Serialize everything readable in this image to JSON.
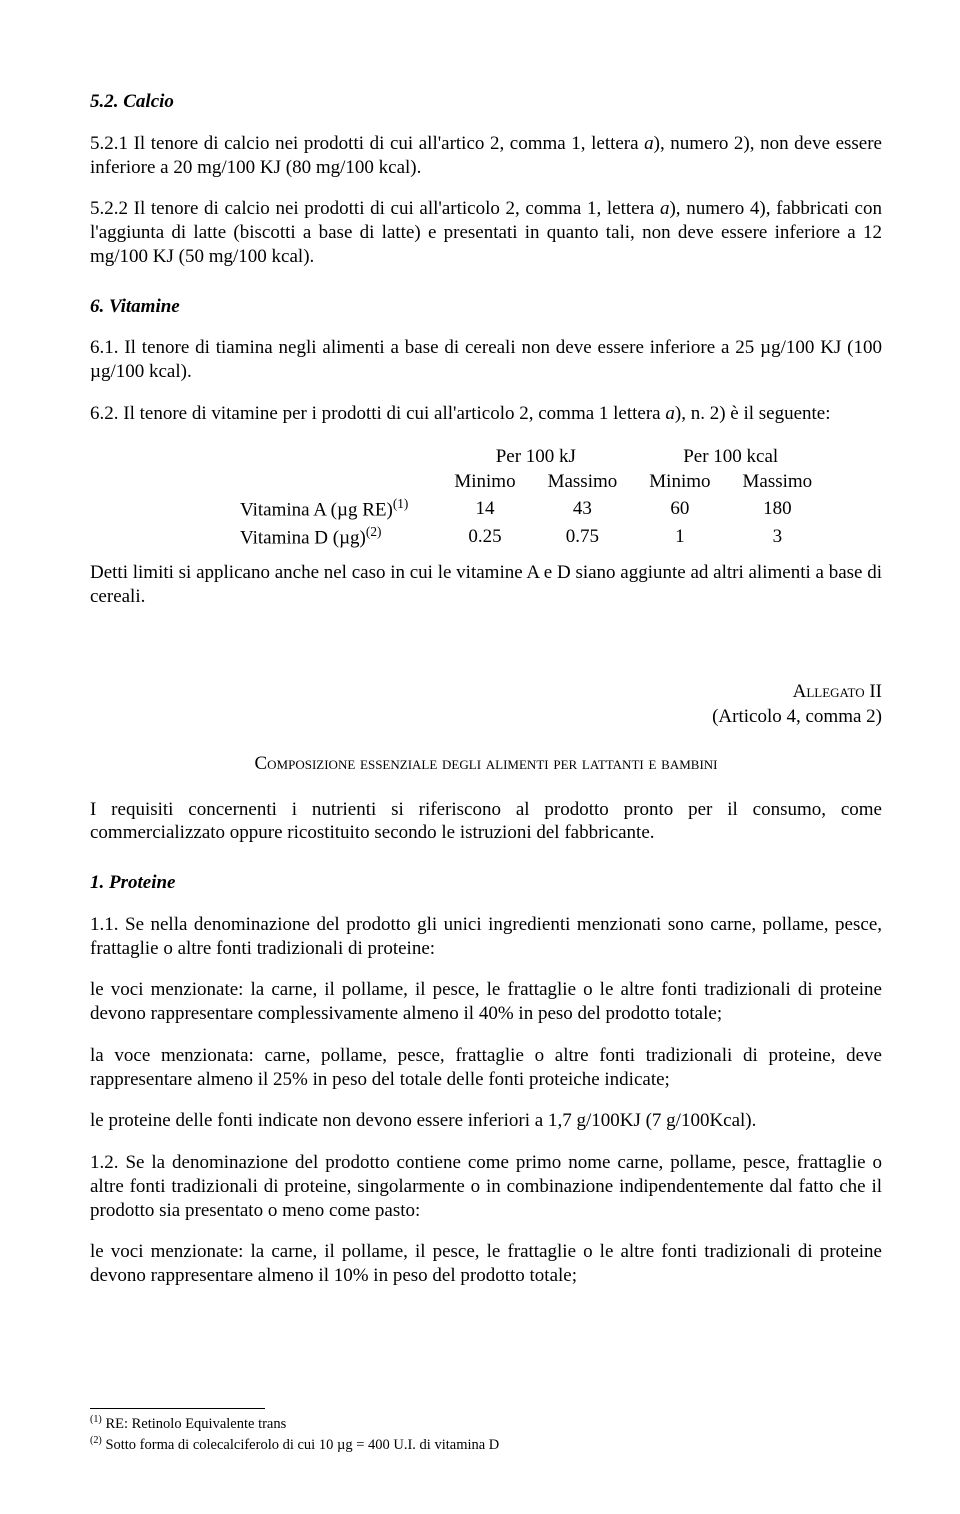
{
  "calcio": {
    "heading": "5.2. Calcio",
    "p521_pre": "5.2.1 Il tenore di calcio nei prodotti di cui all'artico 2, comma 1, lettera ",
    "p521_a": "a",
    "p521_post": "), numero 2), non deve essere inferiore a 20 mg/100 KJ (80 mg/100 kcal).",
    "p522_pre": "5.2.2 Il tenore di calcio nei prodotti di cui all'articolo 2, comma 1, lettera ",
    "p522_a": "a",
    "p522_post": "), numero 4), fabbricati con l'aggiunta di latte (biscotti a base di latte) e presentati in quanto tali, non deve essere inferiore a 12 mg/100 KJ (50 mg/100 kcal)."
  },
  "vitamine": {
    "heading": "6. Vitamine",
    "p61": "6.1. Il tenore di tiamina negli alimenti a base di cereali non deve essere inferiore a 25 µg/100 KJ (100 µg/100 kcal).",
    "p62_pre": "6.2. Il tenore di vitamine per i prodotti di cui all'articolo 2, comma 1 lettera ",
    "p62_a": "a",
    "p62_post": "), n. 2) è il seguente:",
    "table": {
      "h_kj": "Per 100 kJ",
      "h_kcal": "Per 100 kcal",
      "h_min": "Minimo",
      "h_max": "Massimo",
      "rowA_label": "Vitamina A (µg RE)",
      "rowA_sup": "(1)",
      "rowA_v": [
        "14",
        "43",
        "60",
        "180"
      ],
      "rowD_label": "Vitamina D (µg)",
      "rowD_sup": "(2)",
      "rowD_v": [
        "0.25",
        "0.75",
        "1",
        "3"
      ]
    },
    "limits": "Detti limiti si applicano anche nel caso in cui le vitamine A e D siano aggiunte ad altri alimenti a base di cereali."
  },
  "annex": {
    "title_sc": "Allegato",
    "title_num": " II",
    "subtitle": "(Articolo 4, comma 2)",
    "composizione_sc": "Composizione essenziale degli alimenti per lattanti e bambini",
    "intro": "I requisiti concernenti i nutrienti si riferiscono al prodotto pronto per il consumo, come commercializzato oppure ricostituito secondo le istruzioni del fabbricante."
  },
  "proteine": {
    "heading": "1. Proteine",
    "p11a": "1.1. Se nella denominazione del prodotto gli unici ingredienti menzionati sono carne, pollame, pesce, frattaglie o altre fonti tradizionali di proteine:",
    "p11b": "le voci menzionate: la carne, il pollame, il pesce, le frattaglie o le altre fonti tradizionali di proteine devono rappresentare complessivamente almeno il 40% in peso del prodotto totale;",
    "p11c": "la voce menzionata: carne, pollame, pesce, frattaglie o altre fonti tradizionali di proteine, deve rappresentare almeno il 25% in peso del totale delle fonti proteiche indicate;",
    "p11d": "le proteine delle fonti indicate non devono essere inferiori a 1,7 g/100KJ (7 g/100Kcal).",
    "p12a": "1.2. Se la denominazione del prodotto contiene come primo nome carne, pollame, pesce, frattaglie o altre fonti tradizionali di proteine, singolarmente o in combinazione indipendentemente dal fatto che il prodotto sia presentato o meno come pasto:",
    "p12b": "le voci menzionate: la carne, il pollame, il pesce, le frattaglie o le altre fonti tradizionali di proteine devono rappresentare almeno il 10% in peso del prodotto totale;"
  },
  "footnotes": {
    "f1_sup": "(1)",
    "f1": " RE: Retinolo Equivalente trans",
    "f2_sup": "(2)",
    "f2": " Sotto forma di colecalciferolo di cui 10 µg = 400 U.I. di vitamina D"
  }
}
